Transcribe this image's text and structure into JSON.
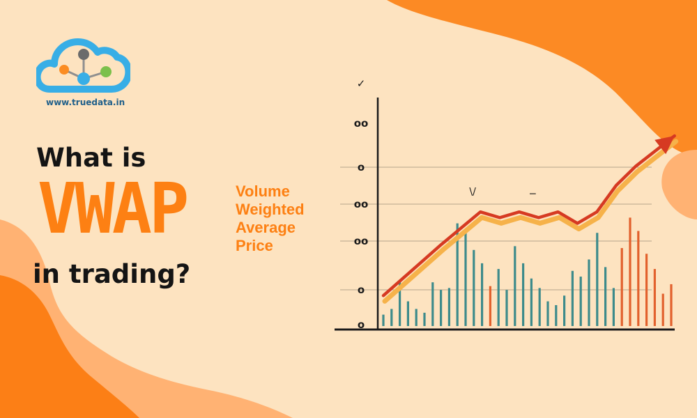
{
  "brand": {
    "url": "www.truedata.in",
    "logo": "truedata-cloud-logo",
    "colors": {
      "cloud_blue": "#38aee6",
      "node_gray": "#6b6b6b",
      "node_orange": "#fb8c22",
      "node_green": "#7cc04b"
    }
  },
  "headline": {
    "line1": "What is",
    "acronym": "VWAP",
    "full_form": [
      "Volume",
      "Weighted",
      "Average",
      "Price"
    ],
    "line3": "in trading?"
  },
  "colors": {
    "background": "#fde3c0",
    "accent": "#fd8013",
    "text": "#141414",
    "bar_teal": "#3d8b8b",
    "bar_orange": "#e2612d",
    "trend_red": "#d63a22",
    "trend_glow": "#f6b24a"
  },
  "chart_data": {
    "type": "bar",
    "title": "",
    "xlabel": "",
    "ylabel": "",
    "y_tick_labels": [
      "✓",
      "oo",
      "o",
      "oo",
      "oo",
      "o",
      "o"
    ],
    "ylim": [
      0,
      10
    ],
    "grid": true,
    "legend": "none",
    "bars": {
      "values": [
        0.6,
        0.9,
        2.4,
        1.3,
        0.9,
        0.7,
        2.3,
        1.9,
        2.0,
        5.4,
        4.9,
        4.0,
        3.3,
        2.1,
        3.0,
        1.9,
        4.2,
        3.3,
        2.5,
        2.0,
        1.3,
        1.1,
        1.6,
        2.9,
        2.6,
        3.5,
        4.9,
        3.1,
        2.0,
        4.1,
        5.7,
        5.0,
        3.8,
        3.0,
        1.7,
        2.2
      ],
      "highlight_indices": [
        13,
        29,
        30,
        31,
        32,
        33,
        34,
        35
      ]
    },
    "trend_line": {
      "x": [
        0,
        3,
        5,
        6,
        7,
        8,
        9,
        10,
        11,
        12,
        13,
        15
      ],
      "y": [
        1.6,
        4.3,
        6.0,
        5.7,
        6.0,
        5.7,
        6.0,
        5.4,
        6.0,
        7.4,
        8.4,
        10.0
      ]
    },
    "annotations": [
      {
        "x": 4.6,
        "y": 6.9,
        "text": "\\/"
      },
      {
        "x": 7.7,
        "y": 6.8,
        "text": "−"
      }
    ]
  }
}
